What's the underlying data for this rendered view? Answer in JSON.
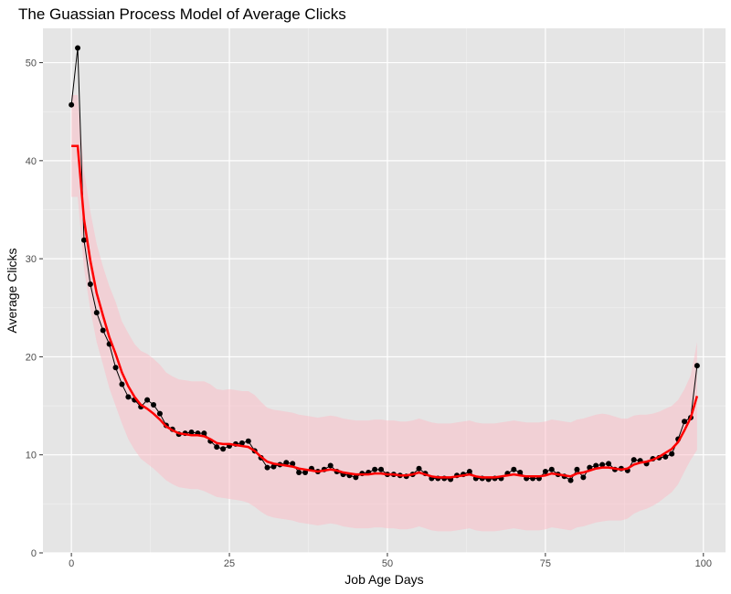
{
  "chart_data": {
    "type": "line",
    "title": "The Guassian Process Model of Average Clicks",
    "xlabel": "Job Age Days",
    "ylabel": "Average Clicks",
    "xlim": [
      -4.5,
      103.5
    ],
    "ylim": [
      0,
      53.5
    ],
    "x_ticks": [
      0,
      25,
      50,
      75,
      100
    ],
    "y_ticks": [
      0,
      10,
      20,
      30,
      40,
      50
    ],
    "x_tick_labels": [
      "0",
      "25",
      "50",
      "75",
      "100"
    ],
    "y_tick_labels": [
      "0",
      "10",
      "20",
      "30",
      "40",
      "50"
    ],
    "grid": true,
    "legend": "none",
    "colors": {
      "panel": "#e5e5e5",
      "grid_major": "#ffffff",
      "observed": "#000000",
      "fit": "#ff0000",
      "band": "#ffb6c1"
    },
    "series": [
      {
        "type": "line+points",
        "x": [
          0,
          1,
          2,
          3,
          4,
          5,
          6,
          7,
          8,
          9,
          10,
          11,
          12,
          13,
          14,
          15,
          16,
          17,
          18,
          19,
          20,
          21,
          22,
          23,
          24,
          25,
          26,
          27,
          28,
          29,
          30,
          31,
          32,
          33,
          34,
          35,
          36,
          37,
          38,
          39,
          40,
          41,
          42,
          43,
          44,
          45,
          46,
          47,
          48,
          49,
          50,
          51,
          52,
          53,
          54,
          55,
          56,
          57,
          58,
          59,
          60,
          61,
          62,
          63,
          64,
          65,
          66,
          67,
          68,
          69,
          70,
          71,
          72,
          73,
          74,
          75,
          76,
          77,
          78,
          79,
          80,
          81,
          82,
          83,
          84,
          85,
          86,
          87,
          88,
          89,
          90,
          91,
          92,
          93,
          94,
          95,
          96,
          97,
          98,
          99
        ],
        "y": [
          45.7,
          51.5,
          31.9,
          27.4,
          24.5,
          22.7,
          21.3,
          18.9,
          17.2,
          15.9,
          15.6,
          14.9,
          15.6,
          15.1,
          14.2,
          13.0,
          12.6,
          12.1,
          12.2,
          12.3,
          12.2,
          12.2,
          11.4,
          10.8,
          10.6,
          10.9,
          11.1,
          11.2,
          11.4,
          10.4,
          9.7,
          8.7,
          8.8,
          9.0,
          9.2,
          9.1,
          8.2,
          8.2,
          8.6,
          8.3,
          8.5,
          8.9,
          8.3,
          8.0,
          7.9,
          7.7,
          8.1,
          8.2,
          8.5,
          8.5,
          8.0,
          8.0,
          7.9,
          7.8,
          8.0,
          8.6,
          8.1,
          7.6,
          7.6,
          7.6,
          7.5,
          7.9,
          8.0,
          8.3,
          7.6,
          7.6,
          7.5,
          7.6,
          7.6,
          8.1,
          8.5,
          8.2,
          7.6,
          7.6,
          7.6,
          8.3,
          8.5,
          8.0,
          7.8,
          7.4,
          8.5,
          7.7,
          8.7,
          8.9,
          9.0,
          9.1,
          8.5,
          8.6,
          8.4,
          9.5,
          9.4,
          9.1,
          9.6,
          9.7,
          9.8,
          10.1,
          11.6,
          13.4,
          13.8,
          19.1
        ]
      },
      {
        "type": "fit",
        "x": [
          0,
          1,
          2,
          3,
          4,
          5,
          6,
          7,
          8,
          9,
          10,
          11,
          12,
          13,
          14,
          15,
          16,
          17,
          18,
          19,
          20,
          21,
          22,
          23,
          24,
          25,
          26,
          27,
          28,
          29,
          30,
          31,
          32,
          33,
          34,
          35,
          36,
          37,
          38,
          39,
          40,
          41,
          42,
          43,
          44,
          45,
          46,
          47,
          48,
          49,
          50,
          51,
          52,
          53,
          54,
          55,
          56,
          57,
          58,
          59,
          60,
          61,
          62,
          63,
          64,
          65,
          66,
          67,
          68,
          69,
          70,
          71,
          72,
          73,
          74,
          75,
          76,
          77,
          78,
          79,
          80,
          81,
          82,
          83,
          84,
          85,
          86,
          87,
          88,
          89,
          90,
          91,
          92,
          93,
          94,
          95,
          96,
          97,
          98,
          99
        ],
        "y": [
          41.5,
          41.5,
          34.0,
          29.8,
          26.5,
          24.2,
          22.0,
          20.3,
          18.4,
          17.0,
          15.9,
          15.1,
          14.7,
          14.2,
          13.6,
          12.9,
          12.5,
          12.2,
          12.1,
          12.0,
          12.0,
          11.9,
          11.6,
          11.2,
          11.1,
          11.1,
          11.0,
          10.9,
          10.8,
          10.4,
          9.8,
          9.3,
          9.1,
          9.0,
          8.9,
          8.8,
          8.6,
          8.5,
          8.4,
          8.3,
          8.4,
          8.5,
          8.4,
          8.2,
          8.1,
          8.0,
          8.0,
          8.0,
          8.1,
          8.1,
          8.0,
          8.0,
          7.9,
          7.9,
          8.0,
          8.2,
          8.0,
          7.8,
          7.7,
          7.7,
          7.7,
          7.8,
          7.9,
          8.0,
          7.8,
          7.7,
          7.7,
          7.7,
          7.8,
          7.9,
          8.0,
          7.9,
          7.8,
          7.8,
          7.8,
          7.9,
          8.1,
          8.0,
          7.9,
          7.8,
          8.1,
          8.2,
          8.4,
          8.6,
          8.7,
          8.7,
          8.6,
          8.5,
          8.6,
          9.0,
          9.2,
          9.3,
          9.5,
          9.8,
          10.2,
          10.6,
          11.3,
          12.5,
          13.8,
          16.0
        ]
      },
      {
        "type": "band",
        "x": [
          0,
          1,
          2,
          3,
          4,
          5,
          6,
          7,
          8,
          9,
          10,
          11,
          12,
          13,
          14,
          15,
          16,
          17,
          18,
          19,
          20,
          21,
          22,
          23,
          24,
          25,
          26,
          27,
          28,
          29,
          30,
          31,
          32,
          33,
          34,
          35,
          36,
          37,
          38,
          39,
          40,
          41,
          42,
          43,
          44,
          45,
          46,
          47,
          48,
          49,
          50,
          51,
          52,
          53,
          54,
          55,
          56,
          57,
          58,
          59,
          60,
          61,
          62,
          63,
          64,
          65,
          66,
          67,
          68,
          69,
          70,
          71,
          72,
          73,
          74,
          75,
          76,
          77,
          78,
          79,
          80,
          81,
          82,
          83,
          84,
          85,
          86,
          87,
          88,
          89,
          90,
          91,
          92,
          93,
          94,
          95,
          96,
          97,
          98,
          99
        ],
        "lower": [
          36.3,
          36.3,
          29.0,
          24.8,
          21.5,
          19.2,
          16.8,
          15.0,
          13.2,
          11.6,
          10.5,
          9.6,
          9.1,
          8.6,
          8.0,
          7.4,
          7.0,
          6.7,
          6.6,
          6.5,
          6.5,
          6.3,
          6.0,
          5.7,
          5.6,
          5.5,
          5.4,
          5.3,
          5.1,
          4.7,
          4.2,
          3.8,
          3.6,
          3.5,
          3.4,
          3.3,
          3.1,
          3.0,
          2.9,
          2.8,
          2.9,
          3.0,
          2.9,
          2.7,
          2.6,
          2.5,
          2.5,
          2.5,
          2.6,
          2.6,
          2.5,
          2.5,
          2.4,
          2.4,
          2.5,
          2.7,
          2.5,
          2.3,
          2.2,
          2.2,
          2.2,
          2.3,
          2.4,
          2.5,
          2.3,
          2.2,
          2.2,
          2.2,
          2.3,
          2.4,
          2.5,
          2.4,
          2.3,
          2.3,
          2.3,
          2.4,
          2.6,
          2.5,
          2.4,
          2.3,
          2.6,
          2.7,
          2.9,
          3.1,
          3.2,
          3.3,
          3.3,
          3.3,
          3.5,
          4.0,
          4.3,
          4.5,
          4.8,
          5.2,
          5.7,
          6.2,
          7.0,
          8.3,
          9.5,
          10.5
        ],
        "upper": [
          46.7,
          46.7,
          39.0,
          34.8,
          31.5,
          29.2,
          27.2,
          25.6,
          23.6,
          22.4,
          21.3,
          20.6,
          20.3,
          19.8,
          19.2,
          18.4,
          18.0,
          17.7,
          17.6,
          17.5,
          17.5,
          17.5,
          17.2,
          16.7,
          16.6,
          16.7,
          16.6,
          16.5,
          16.5,
          16.1,
          15.4,
          14.8,
          14.6,
          14.5,
          14.4,
          14.3,
          14.1,
          14.0,
          13.9,
          13.8,
          13.9,
          14.0,
          13.9,
          13.7,
          13.6,
          13.5,
          13.5,
          13.5,
          13.6,
          13.6,
          13.5,
          13.5,
          13.4,
          13.4,
          13.5,
          13.7,
          13.5,
          13.3,
          13.2,
          13.2,
          13.2,
          13.3,
          13.4,
          13.5,
          13.3,
          13.2,
          13.2,
          13.2,
          13.3,
          13.4,
          13.5,
          13.4,
          13.3,
          13.3,
          13.3,
          13.4,
          13.6,
          13.5,
          13.4,
          13.3,
          13.6,
          13.7,
          13.9,
          14.1,
          14.2,
          14.1,
          13.9,
          13.7,
          13.7,
          14.0,
          14.1,
          14.1,
          14.2,
          14.4,
          14.7,
          15.0,
          15.6,
          16.7,
          18.1,
          21.5
        ]
      }
    ]
  }
}
